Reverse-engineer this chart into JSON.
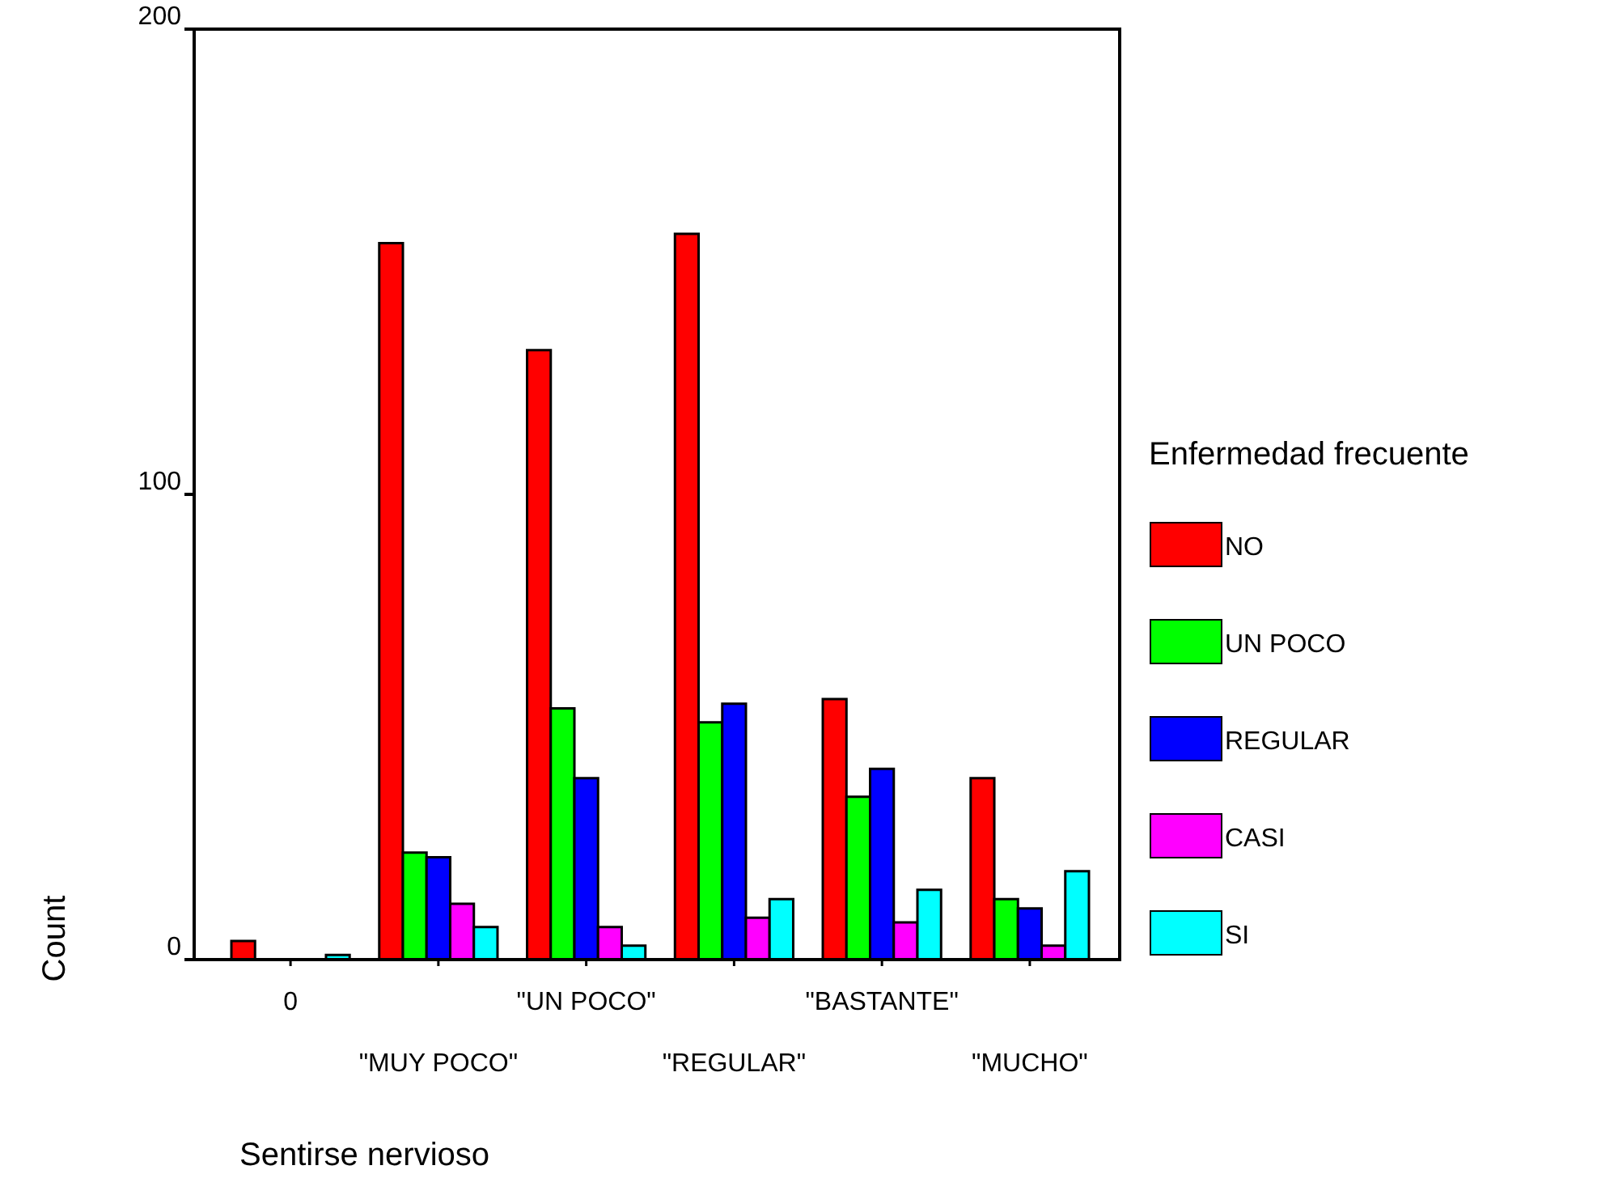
{
  "chart_data": {
    "type": "bar",
    "xlabel": "Sentirse nervioso",
    "ylabel": "Count",
    "legend_title": "Enfermedad frecuente",
    "categories": [
      "0",
      "\"MUY POCO\"",
      "\"UN POCO\"",
      "\"REGULAR\"",
      "\"BASTANTE\"",
      "\"MUCHO\""
    ],
    "series": [
      {
        "name": "NO",
        "color": "#ff0000",
        "values": [
          4,
          154,
          131,
          156,
          56,
          39
        ]
      },
      {
        "name": "UN POCO",
        "color": "#00ff00",
        "values": [
          0,
          23,
          54,
          51,
          35,
          13
        ]
      },
      {
        "name": "REGULAR",
        "color": "#0000ff",
        "values": [
          0,
          22,
          39,
          55,
          41,
          11
        ]
      },
      {
        "name": "CASI",
        "color": "#ff00ff",
        "values": [
          0,
          12,
          7,
          9,
          8,
          3
        ]
      },
      {
        "name": "SI",
        "color": "#00ffff",
        "values": [
          1,
          7,
          3,
          13,
          15,
          19
        ]
      }
    ],
    "ylim": [
      0,
      200
    ],
    "yticks": [
      0,
      100,
      200
    ],
    "grid": false,
    "legend": "right"
  }
}
